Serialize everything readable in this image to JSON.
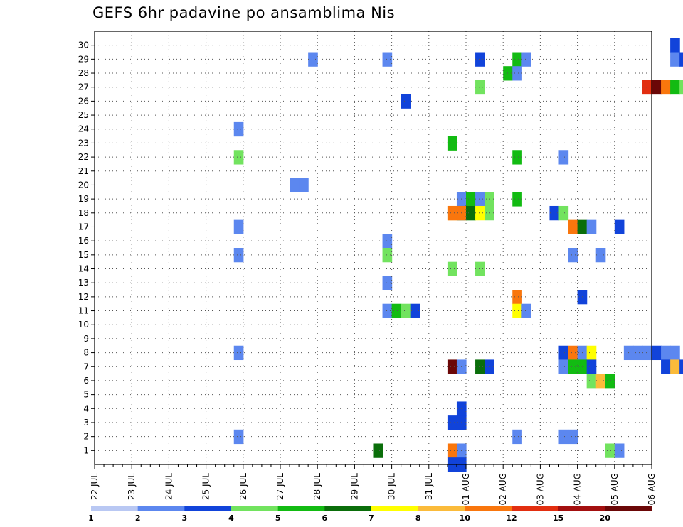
{
  "chart_data": {
    "type": "heatmap",
    "title": "GEFS 6hr padavine po ansamblima Nis",
    "xlabel": "",
    "ylabel": "",
    "y_categories": [
      1,
      2,
      3,
      4,
      5,
      6,
      7,
      8,
      9,
      10,
      11,
      12,
      13,
      14,
      15,
      16,
      17,
      18,
      19,
      20,
      21,
      22,
      23,
      24,
      25,
      26,
      27,
      28,
      29,
      30
    ],
    "x_tick_labels": [
      "22 JUL",
      "23 JUL",
      "24 JUL",
      "25 JUL",
      "26 JUL",
      "27 JUL",
      "28 JUL",
      "29 JUL",
      "30 JUL",
      "31 JUL",
      "01 AUG",
      "02 AUG",
      "03 AUG",
      "04 AUG",
      "05 AUG",
      "06 AUG"
    ],
    "time_steps_per_day": 4,
    "grid": true,
    "colorbar": {
      "placement": "bottom",
      "tick_labels": [
        "1",
        "2",
        "3",
        "4",
        "5",
        "6",
        "7",
        "8",
        "10",
        "12",
        "15",
        "20"
      ],
      "colors": [
        "#b9c8f3",
        "#5c87ef",
        "#1143da",
        "#72e35f",
        "#12bb12",
        "#0a6e0a",
        "#ffff00",
        "#fbbb3a",
        "#f9760d",
        "#e22e10",
        "#a30f0f",
        "#6b0707"
      ]
    },
    "cells": [
      [
        30,
        62,
        2
      ],
      [
        29,
        23,
        1
      ],
      [
        29,
        31,
        1
      ],
      [
        29,
        41,
        2
      ],
      [
        29,
        45,
        4
      ],
      [
        29,
        46,
        1
      ],
      [
        29,
        62,
        1
      ],
      [
        29,
        63,
        2
      ],
      [
        29,
        72,
        8
      ],
      [
        29,
        75,
        1
      ],
      [
        28,
        44,
        4
      ],
      [
        28,
        45,
        1
      ],
      [
        28,
        72,
        1
      ],
      [
        28,
        104,
        1
      ],
      [
        27,
        41,
        3
      ],
      [
        27,
        59,
        9
      ],
      [
        27,
        60,
        11
      ],
      [
        27,
        61,
        8
      ],
      [
        27,
        62,
        4
      ],
      [
        27,
        63,
        3
      ],
      [
        27,
        64,
        1
      ],
      [
        27,
        87,
        2
      ],
      [
        27,
        89,
        1
      ],
      [
        27,
        90,
        2
      ],
      [
        27,
        102,
        1
      ],
      [
        27,
        103,
        2
      ],
      [
        27,
        104,
        4
      ],
      [
        27,
        105,
        3
      ],
      [
        27,
        108,
        2
      ],
      [
        26,
        33,
        2
      ],
      [
        25,
        84,
        3
      ],
      [
        25,
        85,
        8
      ],
      [
        24,
        15,
        1
      ],
      [
        24,
        122,
        2
      ],
      [
        23,
        38,
        4
      ],
      [
        23,
        86,
        1
      ],
      [
        23,
        87,
        2
      ],
      [
        23,
        88,
        9
      ],
      [
        23,
        89,
        8
      ],
      [
        23,
        90,
        1
      ],
      [
        23,
        107,
        1
      ],
      [
        22,
        15,
        3
      ],
      [
        22,
        45,
        4
      ],
      [
        22,
        50,
        1
      ],
      [
        21,
        91,
        1
      ],
      [
        21,
        92,
        1
      ],
      [
        20,
        21,
        1
      ],
      [
        20,
        22,
        1
      ],
      [
        19,
        39,
        1
      ],
      [
        19,
        40,
        4
      ],
      [
        19,
        41,
        1
      ],
      [
        19,
        42,
        3
      ],
      [
        19,
        45,
        4
      ],
      [
        19,
        111,
        1
      ],
      [
        19,
        112,
        12
      ],
      [
        18,
        38,
        7
      ],
      [
        18,
        39,
        5
      ],
      [
        18,
        40,
        3
      ],
      [
        18,
        38,
        8
      ],
      [
        18,
        39,
        8
      ],
      [
        18,
        40,
        5
      ],
      [
        18,
        41,
        6
      ],
      [
        18,
        42,
        3
      ],
      [
        18,
        49,
        2
      ],
      [
        18,
        50,
        3
      ],
      [
        17,
        15,
        1
      ],
      [
        17,
        51,
        8
      ],
      [
        17,
        52,
        5
      ],
      [
        17,
        53,
        1
      ],
      [
        17,
        56,
        2
      ],
      [
        17,
        93,
        9
      ],
      [
        17,
        94,
        2
      ],
      [
        17,
        98,
        1
      ],
      [
        17,
        101,
        2
      ],
      [
        16,
        31,
        1
      ],
      [
        16,
        89,
        1
      ],
      [
        16,
        90,
        2
      ],
      [
        16,
        91,
        9
      ],
      [
        16,
        92,
        8
      ],
      [
        16,
        96,
        3
      ],
      [
        16,
        101,
        1
      ],
      [
        15,
        31,
        3
      ],
      [
        15,
        15,
        1
      ],
      [
        15,
        51,
        1
      ],
      [
        15,
        54,
        1
      ],
      [
        15,
        87,
        1
      ],
      [
        15,
        89,
        1
      ],
      [
        15,
        93,
        1
      ],
      [
        14,
        38,
        3
      ],
      [
        14,
        41,
        3
      ],
      [
        14,
        87,
        1
      ],
      [
        14,
        88,
        4
      ],
      [
        14,
        89,
        5
      ],
      [
        14,
        90,
        4
      ],
      [
        13,
        31,
        1
      ],
      [
        12,
        45,
        8
      ],
      [
        12,
        52,
        2
      ],
      [
        12,
        66,
        4
      ],
      [
        12,
        67,
        3
      ],
      [
        12,
        68,
        1
      ],
      [
        11,
        31,
        1
      ],
      [
        11,
        32,
        4
      ],
      [
        11,
        33,
        3
      ],
      [
        11,
        34,
        2
      ],
      [
        11,
        45,
        6
      ],
      [
        11,
        46,
        1
      ],
      [
        11,
        65,
        4
      ],
      [
        11,
        70,
        1
      ],
      [
        11,
        71,
        1
      ],
      [
        8,
        15,
        1
      ],
      [
        8,
        50,
        2
      ],
      [
        8,
        51,
        8
      ],
      [
        8,
        52,
        1
      ],
      [
        8,
        53,
        6
      ],
      [
        8,
        57,
        1
      ],
      [
        8,
        58,
        1
      ],
      [
        8,
        59,
        1
      ],
      [
        8,
        60,
        2
      ],
      [
        8,
        61,
        1
      ],
      [
        8,
        62,
        1
      ],
      [
        8,
        72,
        1
      ],
      [
        8,
        107,
        1
      ],
      [
        7,
        38,
        11
      ],
      [
        7,
        39,
        1
      ],
      [
        7,
        41,
        5
      ],
      [
        7,
        42,
        2
      ],
      [
        7,
        50,
        1
      ],
      [
        7,
        51,
        4
      ],
      [
        7,
        52,
        4
      ],
      [
        7,
        53,
        2
      ],
      [
        7,
        61,
        2
      ],
      [
        7,
        62,
        7
      ],
      [
        7,
        63,
        2
      ],
      [
        7,
        76,
        2
      ],
      [
        6,
        53,
        3
      ],
      [
        6,
        54,
        7
      ],
      [
        6,
        55,
        4
      ],
      [
        5,
        89,
        2
      ],
      [
        5,
        90,
        8
      ],
      [
        5,
        91,
        2
      ],
      [
        4,
        39,
        2
      ],
      [
        4,
        96,
        1
      ],
      [
        4,
        97,
        2
      ],
      [
        4,
        98,
        8
      ],
      [
        4,
        102,
        3
      ],
      [
        4,
        103,
        6
      ],
      [
        4,
        106,
        3
      ],
      [
        3,
        38,
        2
      ],
      [
        3,
        39,
        2
      ],
      [
        2,
        15,
        1
      ],
      [
        2,
        45,
        1
      ],
      [
        2,
        50,
        1
      ],
      [
        2,
        51,
        1
      ],
      [
        2,
        97,
        2
      ],
      [
        1,
        30,
        5
      ],
      [
        1,
        38,
        8
      ],
      [
        1,
        39,
        1
      ],
      [
        1,
        55,
        3
      ],
      [
        1,
        56,
        1
      ],
      [
        1,
        86,
        1
      ],
      [
        1,
        87,
        3
      ],
      [
        1,
        88,
        1
      ],
      [
        1,
        89,
        1
      ],
      [
        1,
        90,
        1
      ],
      [
        1,
        91,
        2
      ],
      [
        1,
        92,
        1
      ],
      [
        0,
        38,
        2
      ],
      [
        0,
        39,
        2
      ]
    ]
  }
}
